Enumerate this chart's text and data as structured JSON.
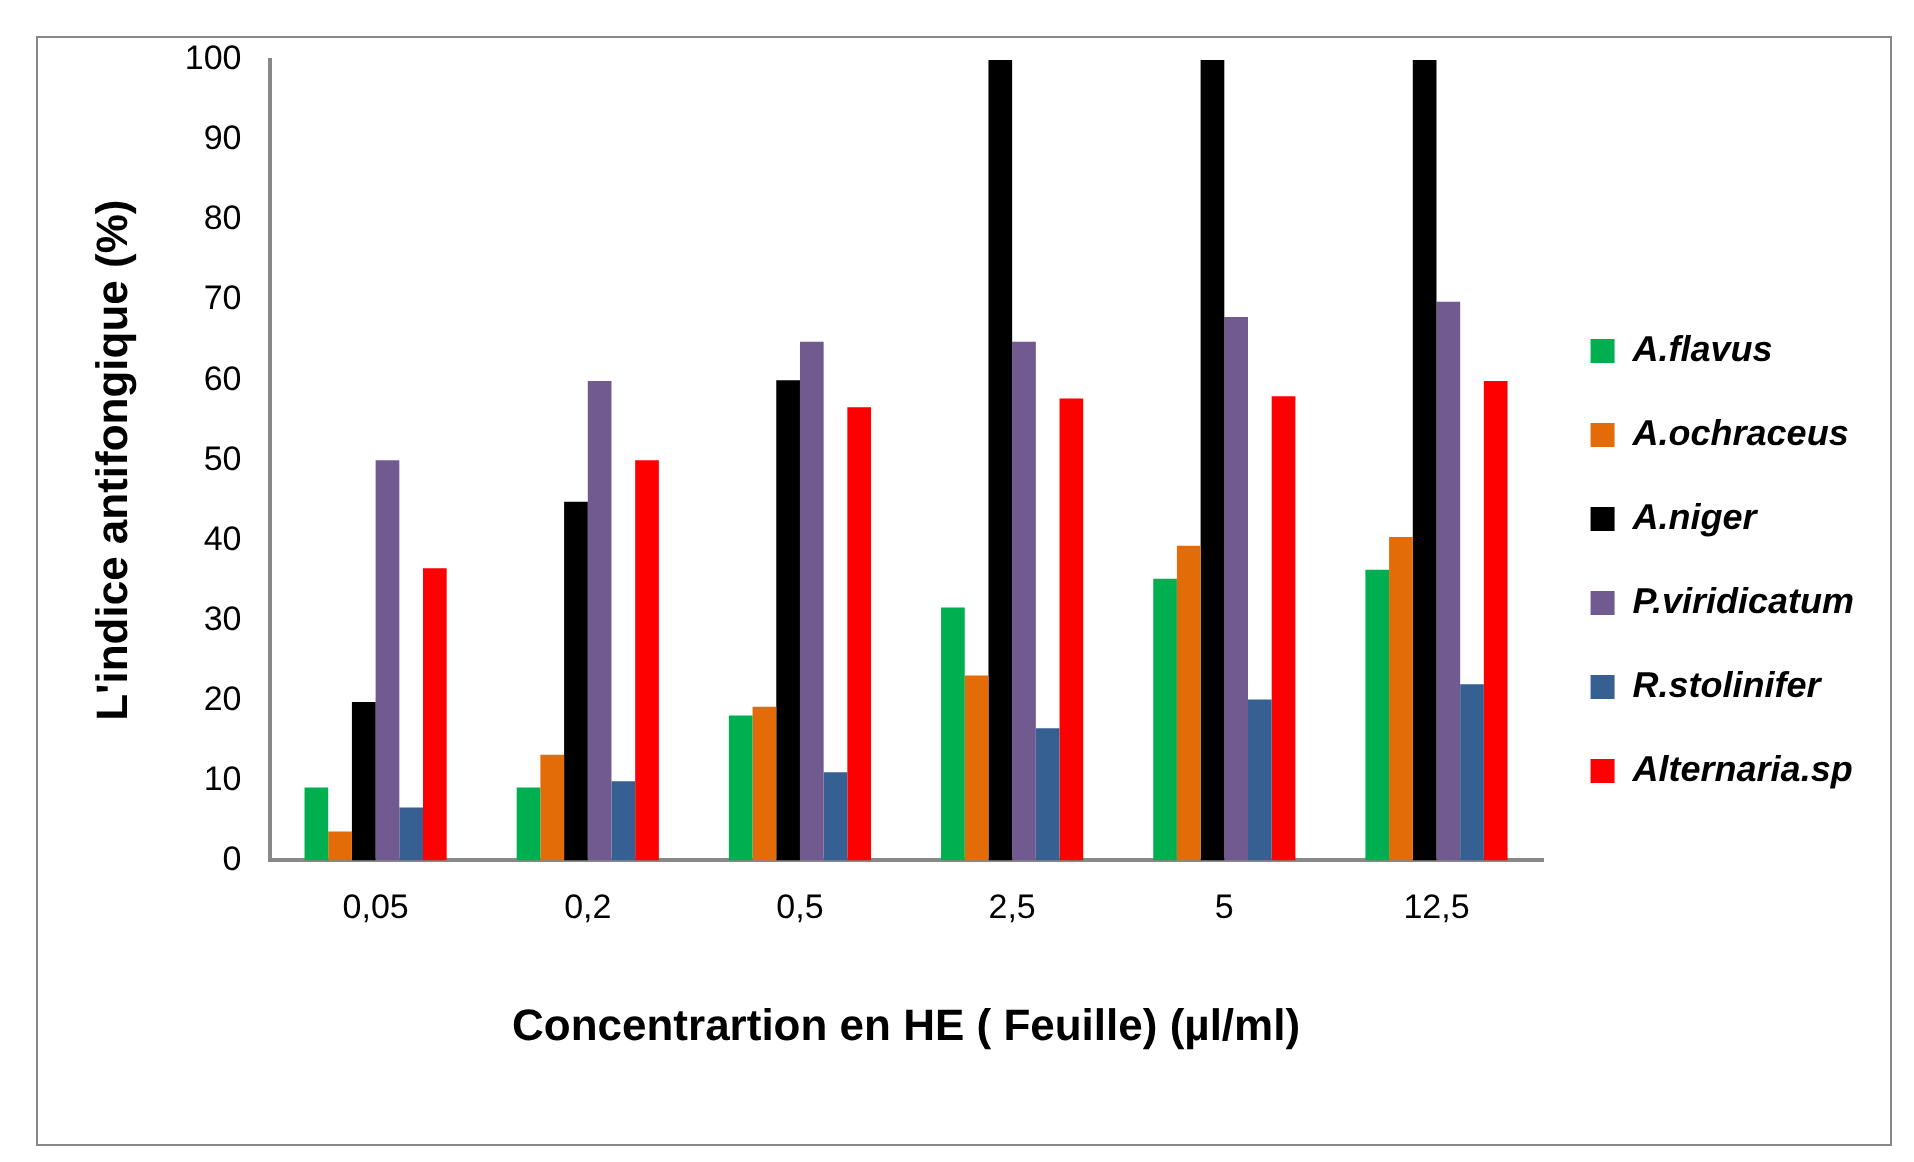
{
  "chart_data": {
    "type": "bar",
    "xlabel": "Concentrartion en HE ( Feuille) (µl/ml)",
    "ylabel": "L'indice antifongique (%)",
    "categories": [
      "0,05",
      "0,2",
      "0,5",
      "2,5",
      "5",
      "12,5"
    ],
    "series": [
      {
        "name": "A.flavus",
        "color": "#00b050",
        "values": [
          9.1,
          9.1,
          18.1,
          31.6,
          35.2,
          36.3
        ]
      },
      {
        "name": "A.ochraceus",
        "color": "#e36c09",
        "values": [
          3.6,
          13.2,
          19.2,
          23.1,
          39.3,
          40.4
        ]
      },
      {
        "name": "A.niger",
        "color": "#000000",
        "values": [
          19.8,
          44.8,
          60,
          100,
          100,
          100
        ]
      },
      {
        "name": "P.viridicatum",
        "color": "#705a8f",
        "values": [
          50,
          59.9,
          64.8,
          64.8,
          67.9,
          69.8
        ]
      },
      {
        "name": "R.stolinifer",
        "color": "#366092",
        "values": [
          6.6,
          9.9,
          11,
          16.5,
          20.1,
          22
        ]
      },
      {
        "name": "Alternaria.sp",
        "color": "#ff0000",
        "values": [
          36.5,
          50,
          56.6,
          57.7,
          58,
          59.9
        ]
      }
    ],
    "ylim": [
      0,
      100
    ],
    "yticks": [
      0,
      10,
      20,
      30,
      40,
      50,
      60,
      70,
      80,
      90,
      100
    ],
    "grid": false,
    "legend": "right"
  }
}
